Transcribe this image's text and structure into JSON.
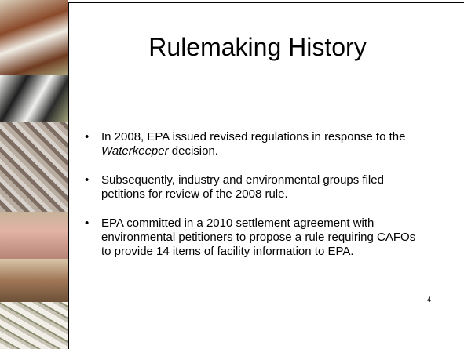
{
  "slide": {
    "title": "Rulemaking History",
    "bullets": [
      [
        "In 2008, EPA issued revised regulations in response to the ",
        "Waterkeeper",
        " decision."
      ],
      [
        "Subsequently, industry and environmental groups filed petitions for review of the 2008 rule."
      ],
      [
        "EPA committed in a 2010 settlement agreement with environmental petitioners to propose a rule requiring CAFOs to provide 14 items of facility information to EPA."
      ]
    ],
    "page_number": "4"
  }
}
